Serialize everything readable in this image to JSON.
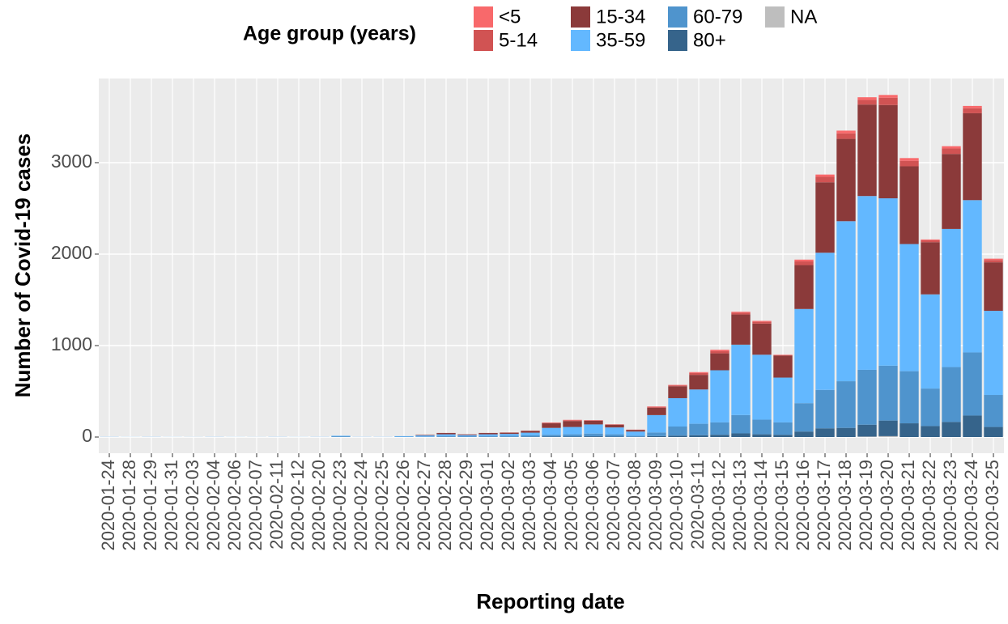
{
  "chart_data": {
    "type": "stacked-bar",
    "x_label": "Reporting date",
    "y_label": "Number of Covid-19 cases",
    "legend_title": "Age group (years)",
    "legend_position": "top",
    "grid": true,
    "background": "#ebebeb",
    "categories": [
      "2020-01-24",
      "2020-01-28",
      "2020-01-29",
      "2020-01-31",
      "2020-02-03",
      "2020-02-04",
      "2020-02-06",
      "2020-02-07",
      "2020-02-11",
      "2020-02-12",
      "2020-02-20",
      "2020-02-23",
      "2020-02-24",
      "2020-02-25",
      "2020-02-26",
      "2020-02-27",
      "2020-02-28",
      "2020-02-29",
      "2020-03-01",
      "2020-03-02",
      "2020-03-03",
      "2020-03-04",
      "2020-03-05",
      "2020-03-06",
      "2020-03-07",
      "2020-03-08",
      "2020-03-09",
      "2020-03-10",
      "2020-03-11",
      "2020-03-12",
      "2020-03-13",
      "2020-03-14",
      "2020-03-15",
      "2020-03-16",
      "2020-03-17",
      "2020-03-18",
      "2020-03-19",
      "2020-03-20",
      "2020-03-21",
      "2020-03-22",
      "2020-03-23",
      "2020-03-24",
      "2020-03-25"
    ],
    "series": [
      {
        "name": "<5",
        "color": "#f8696b",
        "values": [
          0,
          0,
          0,
          0,
          0,
          0,
          0,
          0,
          0,
          0,
          0,
          0,
          0,
          0,
          0,
          0,
          0,
          0,
          0,
          1,
          1,
          3,
          5,
          2,
          2,
          1,
          5,
          5,
          10,
          15,
          10,
          10,
          5,
          20,
          25,
          30,
          30,
          30,
          30,
          10,
          25,
          25,
          15
        ]
      },
      {
        "name": "5-14",
        "color": "#d15353",
        "values": [
          0,
          0,
          0,
          0,
          0,
          0,
          0,
          0,
          0,
          0,
          0,
          0,
          0,
          0,
          0,
          0,
          1,
          1,
          1,
          1,
          1,
          5,
          8,
          5,
          3,
          2,
          10,
          10,
          20,
          25,
          20,
          20,
          5,
          40,
          60,
          60,
          50,
          80,
          60,
          20,
          60,
          55,
          25
        ]
      },
      {
        "name": "15-34",
        "color": "#8b3a3a",
        "values": [
          0,
          0,
          0,
          0,
          0,
          0,
          0,
          0,
          0,
          0,
          0,
          0,
          0,
          0,
          0,
          6,
          14,
          8,
          14,
          14,
          20,
          50,
          65,
          40,
          30,
          18,
          80,
          130,
          160,
          185,
          330,
          340,
          240,
          480,
          770,
          900,
          1000,
          1020,
          850,
          570,
          820,
          950,
          530
        ]
      },
      {
        "name": "35-59",
        "color": "#63b8ff",
        "values": [
          1,
          1,
          1,
          1,
          0,
          1,
          1,
          0,
          1,
          1,
          1,
          6,
          1,
          1,
          6,
          12,
          18,
          12,
          18,
          20,
          30,
          75,
          80,
          100,
          75,
          45,
          190,
          310,
          375,
          570,
          770,
          710,
          490,
          1030,
          1500,
          1750,
          1900,
          1830,
          1390,
          1030,
          1510,
          1665,
          920
        ]
      },
      {
        "name": "60-79",
        "color": "#4f94cd",
        "values": [
          1,
          0,
          1,
          0,
          1,
          1,
          0,
          1,
          1,
          0,
          1,
          8,
          1,
          1,
          4,
          5,
          10,
          8,
          10,
          12,
          15,
          20,
          25,
          30,
          25,
          12,
          40,
          100,
          125,
          135,
          200,
          160,
          135,
          310,
          420,
          510,
          600,
          600,
          570,
          410,
          600,
          690,
          350
        ]
      },
      {
        "name": "80+",
        "color": "#36648b",
        "values": [
          0,
          0,
          0,
          0,
          0,
          0,
          0,
          0,
          0,
          0,
          0,
          0,
          0,
          0,
          0,
          1,
          2,
          1,
          2,
          2,
          3,
          5,
          5,
          8,
          5,
          3,
          10,
          15,
          20,
          25,
          40,
          30,
          25,
          60,
          95,
          100,
          130,
          170,
          150,
          120,
          165,
          235,
          110
        ]
      },
      {
        "name": "NA",
        "color": "#bebebe",
        "values": [
          0,
          0,
          0,
          0,
          0,
          0,
          0,
          0,
          0,
          0,
          0,
          0,
          0,
          0,
          0,
          0,
          0,
          0,
          0,
          0,
          0,
          0,
          0,
          0,
          0,
          0,
          0,
          0,
          0,
          0,
          0,
          0,
          0,
          0,
          0,
          0,
          5,
          10,
          0,
          0,
          0,
          0,
          0
        ]
      }
    ],
    "ylim": [
      -177,
      3920
    ],
    "yticks": [
      0,
      1000,
      2000,
      3000
    ]
  }
}
